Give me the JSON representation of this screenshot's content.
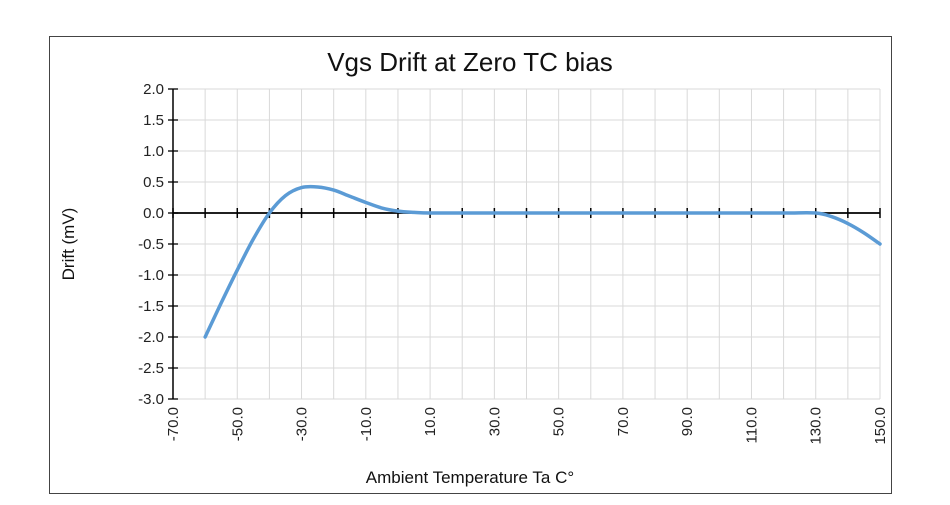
{
  "chart_data": {
    "type": "line",
    "title": "Vgs Drift at Zero TC bias",
    "xlabel": "Ambient Temperature Ta C°",
    "ylabel": "Drift (mV)",
    "xlim": [
      -70,
      150
    ],
    "ylim": [
      -3.0,
      2.0
    ],
    "x_major_ticks": [
      -70,
      -50,
      -30,
      -10,
      10,
      30,
      50,
      70,
      90,
      110,
      130,
      150
    ],
    "x_tick_labels": [
      "-70.0",
      "-50.0",
      "-30.0",
      "-10.0",
      "10.0",
      "30.0",
      "50.0",
      "70.0",
      "90.0",
      "110.0",
      "130.0",
      "150.0"
    ],
    "x_minor_step": 10,
    "y_ticks": [
      2.0,
      1.5,
      1.0,
      0.5,
      0.0,
      -0.5,
      -1.0,
      -1.5,
      -2.0,
      -2.5,
      -3.0
    ],
    "y_tick_labels": [
      "2.0",
      "1.5",
      "1.0",
      "0.5",
      "0.0",
      "-0.5",
      "-1.0",
      "-1.5",
      "-2.0",
      "-2.5",
      "-3.0"
    ],
    "grid": true,
    "legend": "none",
    "series": [
      {
        "color": "#5b9bd5",
        "x": [
          -60,
          -55,
          -50,
          -45,
          -40,
          -35,
          -30,
          -25,
          -20,
          -15,
          -10,
          -5,
          0,
          5,
          10,
          20,
          40,
          60,
          80,
          100,
          120,
          130,
          135,
          140,
          145,
          150
        ],
        "y": [
          -2.0,
          -1.45,
          -0.92,
          -0.42,
          0.0,
          0.28,
          0.41,
          0.42,
          0.37,
          0.27,
          0.17,
          0.08,
          0.03,
          0.01,
          0.0,
          0.0,
          0.0,
          0.0,
          0.0,
          0.0,
          0.0,
          0.0,
          -0.06,
          -0.17,
          -0.32,
          -0.5
        ]
      }
    ]
  }
}
